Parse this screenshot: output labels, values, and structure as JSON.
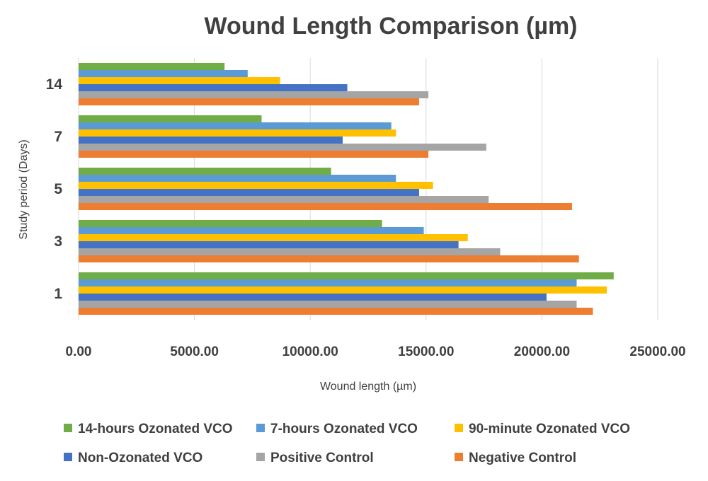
{
  "chart_data": {
    "type": "bar",
    "orientation": "horizontal",
    "title": "Wound Length Comparison (µm)",
    "xlabel": "Wound length (µm)",
    "ylabel": "Study period (Days)",
    "xlim": [
      0,
      25000
    ],
    "x_ticks": [
      "0.00",
      "5000.00",
      "10000.00",
      "15000.00",
      "20000.00",
      "25000.00"
    ],
    "categories": [
      "1",
      "3",
      "5",
      "7",
      "14"
    ],
    "grid": "vertical",
    "legend_position": "bottom",
    "series": [
      {
        "name": "14-hours Ozonated VCO",
        "color": "#70AD47",
        "values": [
          23100,
          13100,
          10900,
          7900,
          6300
        ]
      },
      {
        "name": "7-hours Ozonated VCO",
        "color": "#5B9BD5",
        "values": [
          21500,
          14900,
          13700,
          13500,
          7300
        ]
      },
      {
        "name": "90-minute Ozonated VCO",
        "color": "#FFC000",
        "values": [
          22800,
          16800,
          15300,
          13700,
          8700
        ]
      },
      {
        "name": "Non-Ozonated VCO",
        "color": "#4472C4",
        "values": [
          20200,
          16400,
          14700,
          11400,
          11600
        ]
      },
      {
        "name": "Positive Control",
        "color": "#A5A5A5",
        "values": [
          21500,
          18200,
          17700,
          17600,
          15100
        ]
      },
      {
        "name": "Negative Control",
        "color": "#ED7D31",
        "values": [
          22200,
          21600,
          21300,
          15100,
          14700
        ]
      }
    ]
  }
}
